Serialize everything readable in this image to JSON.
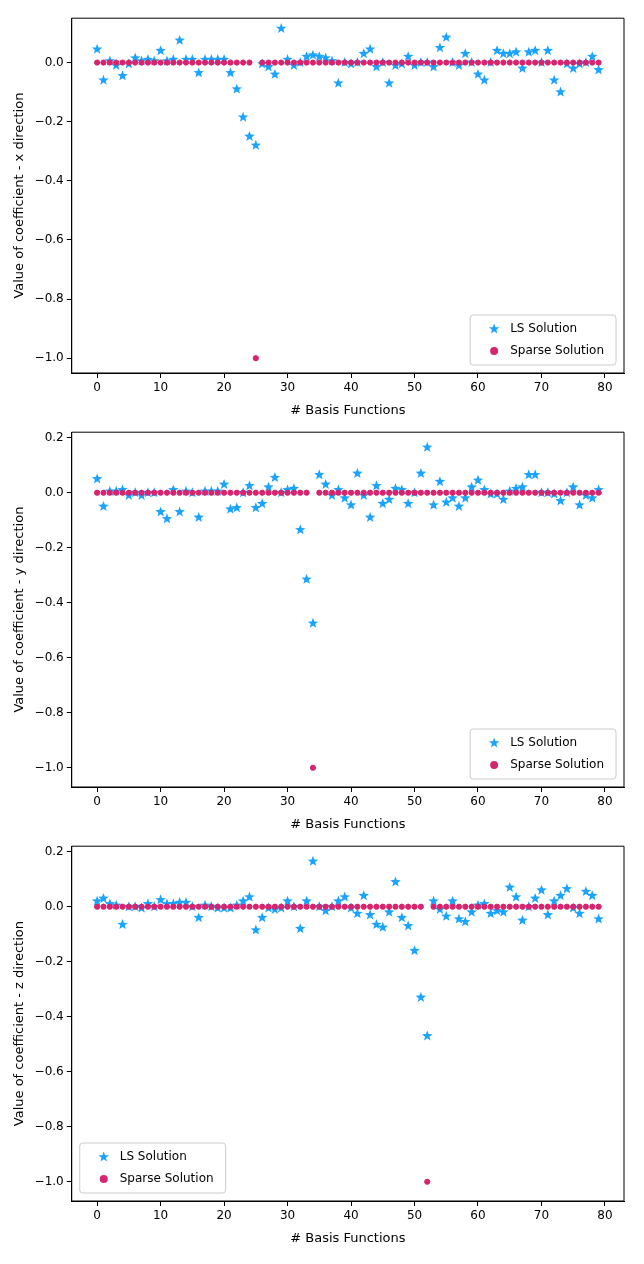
{
  "chart_data": [
    {
      "type": "scatter",
      "xlabel": "# Basis Functions",
      "ylabel": "Value of coefficient - x direction",
      "xlim": [
        -4,
        83
      ],
      "xticks": [
        0,
        10,
        20,
        30,
        40,
        50,
        60,
        70,
        80
      ],
      "ylim": [
        -1.05,
        0.15
      ],
      "yticks": [
        {
          "value": -1,
          "label": "−1.0"
        },
        {
          "value": -0.8,
          "label": "−0.8"
        },
        {
          "value": -0.6,
          "label": "−0.6"
        },
        {
          "value": -0.4,
          "label": "−0.4"
        },
        {
          "value": -0.2,
          "label": "−0.2"
        },
        {
          "value": 0,
          "label": "0.0"
        }
      ],
      "grid": false,
      "legend": "bottom right",
      "x": [
        0,
        1,
        2,
        3,
        4,
        5,
        6,
        7,
        8,
        9,
        10,
        11,
        12,
        13,
        14,
        15,
        16,
        17,
        18,
        19,
        20,
        21,
        22,
        23,
        24,
        25,
        26,
        27,
        28,
        29,
        30,
        31,
        32,
        33,
        34,
        35,
        36,
        37,
        38,
        39,
        40,
        41,
        42,
        43,
        44,
        45,
        46,
        47,
        48,
        49,
        50,
        51,
        52,
        53,
        54,
        55,
        56,
        57,
        58,
        59,
        60,
        61,
        62,
        63,
        64,
        65,
        66,
        67,
        68,
        69,
        70,
        71,
        72,
        73,
        74,
        75,
        76,
        77,
        78,
        79
      ],
      "series": [
        {
          "name": "LS Solution",
          "color": "#1aa3ff",
          "marker": "star",
          "values": [
            0.045,
            -0.06,
            0.005,
            -0.01,
            -0.045,
            -0.005,
            0.015,
            0.005,
            0.01,
            0.005,
            0.04,
            0.005,
            0.01,
            0.075,
            0.01,
            0.01,
            -0.035,
            0.01,
            0.01,
            0.01,
            0.01,
            -0.035,
            -0.09,
            -0.185,
            -0.25,
            -0.28,
            -0.005,
            -0.015,
            -0.04,
            0.115,
            0.01,
            -0.01,
            0,
            0.02,
            0.025,
            0.02,
            0.015,
            0.005,
            -0.07,
            0,
            -0.005,
            0,
            0.03,
            0.045,
            -0.015,
            0,
            -0.07,
            -0.01,
            -0.005,
            0.02,
            -0.01,
            0,
            0,
            -0.015,
            0.05,
            0.085,
            0,
            -0.01,
            0.03,
            0,
            -0.04,
            -0.06,
            0,
            0.04,
            0.03,
            0.03,
            0.035,
            -0.02,
            0.035,
            0.04,
            0,
            0.04,
            -0.06,
            -0.1,
            -0.005,
            -0.02,
            -0.005,
            0,
            0.02,
            -0.025
          ]
        },
        {
          "name": "Sparse Solution",
          "color": "#d6246e",
          "marker": "circle",
          "values": [
            0,
            0,
            0,
            0,
            0,
            0,
            0,
            0,
            0,
            0,
            0,
            0,
            0,
            0,
            0,
            0,
            0,
            0,
            0,
            0,
            0,
            0,
            0,
            0,
            0,
            -1,
            0,
            0,
            0,
            0,
            0,
            0,
            0,
            0,
            0,
            0,
            0,
            0,
            0,
            0,
            0,
            0,
            0,
            0,
            0,
            0,
            0,
            0,
            0,
            0,
            0,
            0,
            0,
            0,
            0,
            0,
            0,
            0,
            0,
            0,
            0,
            0,
            0,
            0,
            0,
            0,
            0,
            0,
            0,
            0,
            0,
            0,
            0,
            0,
            0,
            0,
            0,
            0,
            0,
            0
          ]
        }
      ]
    },
    {
      "type": "scatter",
      "xlabel": "# Basis Functions",
      "ylabel": "Value of coefficient - y direction",
      "xlim": [
        -4,
        83
      ],
      "xticks": [
        0,
        10,
        20,
        30,
        40,
        50,
        60,
        70,
        80
      ],
      "ylim": [
        -1.07,
        0.22
      ],
      "yticks": [
        {
          "value": -1,
          "label": "−1.0"
        },
        {
          "value": -0.8,
          "label": "−0.8"
        },
        {
          "value": -0.6,
          "label": "−0.6"
        },
        {
          "value": -0.4,
          "label": "−0.4"
        },
        {
          "value": -0.2,
          "label": "−0.2"
        },
        {
          "value": 0,
          "label": "0.0"
        },
        {
          "value": 0.2,
          "label": "0.2"
        }
      ],
      "grid": false,
      "legend": "bottom right",
      "x": [
        0,
        1,
        2,
        3,
        4,
        5,
        6,
        7,
        8,
        9,
        10,
        11,
        12,
        13,
        14,
        15,
        16,
        17,
        18,
        19,
        20,
        21,
        22,
        23,
        24,
        25,
        26,
        27,
        28,
        29,
        30,
        31,
        32,
        33,
        34,
        35,
        36,
        37,
        38,
        39,
        40,
        41,
        42,
        43,
        44,
        45,
        46,
        47,
        48,
        49,
        50,
        51,
        52,
        53,
        54,
        55,
        56,
        57,
        58,
        59,
        60,
        61,
        62,
        63,
        64,
        65,
        66,
        67,
        68,
        69,
        70,
        71,
        72,
        73,
        74,
        75,
        76,
        77,
        78,
        79
      ],
      "series": [
        {
          "name": "LS Solution",
          "color": "#1aa3ff",
          "marker": "star",
          "values": [
            0.05,
            -0.05,
            0.005,
            0.005,
            0.01,
            -0.01,
            0,
            -0.01,
            0,
            0,
            -0.07,
            -0.095,
            0.01,
            -0.07,
            0.005,
            0,
            -0.09,
            0.005,
            0.005,
            0.005,
            0.03,
            -0.06,
            -0.055,
            0,
            0.025,
            -0.055,
            -0.04,
            0.02,
            0.055,
            0,
            0.01,
            0.015,
            -0.135,
            -0.315,
            -0.475,
            0.065,
            0.03,
            -0.01,
            0.01,
            -0.02,
            -0.045,
            0.07,
            -0.01,
            -0.09,
            0.025,
            -0.04,
            -0.025,
            0.015,
            0.01,
            -0.04,
            0,
            0.07,
            0.165,
            -0.045,
            0.04,
            -0.035,
            -0.02,
            -0.05,
            -0.02,
            0.02,
            0.045,
            0.01,
            -0.005,
            -0.005,
            -0.025,
            0.005,
            0.015,
            0.02,
            0.065,
            0.065,
            0,
            0,
            -0.005,
            -0.03,
            0,
            0.02,
            -0.045,
            -0.01,
            -0.02,
            0.01
          ]
        },
        {
          "name": "Sparse Solution",
          "color": "#d6246e",
          "marker": "circle",
          "values": [
            0,
            0,
            0,
            0,
            0,
            0,
            0,
            0,
            0,
            0,
            0,
            0,
            0,
            0,
            0,
            0,
            0,
            0,
            0,
            0,
            0,
            0,
            0,
            0,
            0,
            0,
            0,
            0,
            0,
            0,
            0,
            0,
            0,
            0,
            -1,
            0,
            0,
            0,
            0,
            0,
            0,
            0,
            0,
            0,
            0,
            0,
            0,
            0,
            0,
            0,
            0,
            0,
            0,
            0,
            0,
            0,
            0,
            0,
            0,
            0,
            0,
            0,
            0,
            0,
            0,
            0,
            0,
            0,
            0,
            0,
            0,
            0,
            0,
            0,
            0,
            0,
            0,
            0,
            0,
            0
          ]
        }
      ]
    },
    {
      "type": "scatter",
      "xlabel": "# Basis Functions",
      "ylabel": "Value of coefficient - z direction",
      "xlim": [
        -4,
        83
      ],
      "xticks": [
        0,
        10,
        20,
        30,
        40,
        50,
        60,
        70,
        80
      ],
      "ylim": [
        -1.07,
        0.22
      ],
      "yticks": [
        {
          "value": -1,
          "label": "−1.0"
        },
        {
          "value": -0.8,
          "label": "−0.8"
        },
        {
          "value": -0.6,
          "label": "−0.6"
        },
        {
          "value": -0.4,
          "label": "−0.4"
        },
        {
          "value": -0.2,
          "label": "−0.2"
        },
        {
          "value": 0,
          "label": "0.0"
        },
        {
          "value": 0.2,
          "label": "0.2"
        }
      ],
      "grid": false,
      "legend": "bottom left",
      "x": [
        0,
        1,
        2,
        3,
        4,
        5,
        6,
        7,
        8,
        9,
        10,
        11,
        12,
        13,
        14,
        15,
        16,
        17,
        18,
        19,
        20,
        21,
        22,
        23,
        24,
        25,
        26,
        27,
        28,
        29,
        30,
        31,
        32,
        33,
        34,
        35,
        36,
        37,
        38,
        39,
        40,
        41,
        42,
        43,
        44,
        45,
        46,
        47,
        48,
        49,
        50,
        51,
        52,
        53,
        54,
        55,
        56,
        57,
        58,
        59,
        60,
        61,
        62,
        63,
        64,
        65,
        66,
        67,
        68,
        69,
        70,
        71,
        72,
        73,
        74,
        75,
        76,
        77,
        78,
        79
      ],
      "series": [
        {
          "name": "LS Solution",
          "color": "#1aa3ff",
          "marker": "star",
          "values": [
            0.02,
            0.03,
            0.01,
            0.005,
            -0.065,
            0,
            0,
            -0.005,
            0.01,
            0,
            0.025,
            0.01,
            0.01,
            0.015,
            0.015,
            0,
            -0.04,
            0.005,
            0,
            -0.005,
            -0.005,
            -0.005,
            0.005,
            0.02,
            0.035,
            -0.085,
            -0.04,
            -0.005,
            -0.01,
            -0.005,
            0.02,
            0,
            -0.08,
            0.02,
            0.165,
            0,
            -0.015,
            0,
            0.02,
            0.035,
            -0.005,
            -0.025,
            0.04,
            -0.03,
            -0.065,
            -0.075,
            -0.02,
            0.09,
            -0.04,
            -0.07,
            -0.16,
            -0.33,
            -0.47,
            0.02,
            -0.01,
            -0.035,
            0.02,
            -0.045,
            -0.055,
            -0.02,
            0.005,
            0.01,
            -0.025,
            -0.015,
            -0.02,
            0.07,
            0.035,
            -0.05,
            0,
            0.03,
            0.06,
            -0.03,
            0.02,
            0.04,
            0.065,
            -0.005,
            -0.025,
            0.055,
            0.04,
            -0.045
          ]
        },
        {
          "name": "Sparse Solution",
          "color": "#d6246e",
          "marker": "circle",
          "values": [
            0,
            0,
            0,
            0,
            0,
            0,
            0,
            0,
            0,
            0,
            0,
            0,
            0,
            0,
            0,
            0,
            0,
            0,
            0,
            0,
            0,
            0,
            0,
            0,
            0,
            0,
            0,
            0,
            0,
            0,
            0,
            0,
            0,
            0,
            0,
            0,
            0,
            0,
            0,
            0,
            0,
            0,
            0,
            0,
            0,
            0,
            0,
            0,
            0,
            0,
            0,
            0,
            -1,
            0,
            0,
            0,
            0,
            0,
            0,
            0,
            0,
            0,
            0,
            0,
            0,
            0,
            0,
            0,
            0,
            0,
            0,
            0,
            0,
            0,
            0,
            0,
            0,
            0,
            0,
            0
          ]
        }
      ]
    }
  ]
}
